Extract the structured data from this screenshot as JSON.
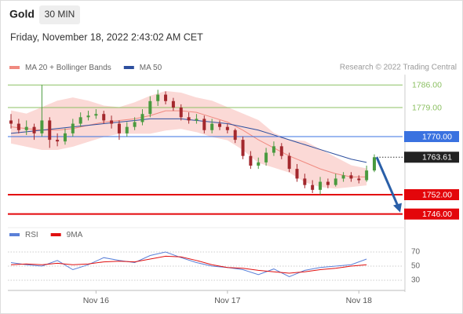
{
  "header": {
    "title": "Gold",
    "timeframe": "30 MIN",
    "datetime": "Friday, November 18, 2022 2:43:02 AM CET"
  },
  "chart_data": [
    {
      "type": "candlestick",
      "source": "Research © 2022 Trading Central",
      "categories": [
        null,
        null,
        null,
        null,
        null,
        null,
        null,
        null,
        null,
        null,
        null,
        "Nov 16",
        null,
        null,
        null,
        null,
        null,
        null,
        null,
        null,
        null,
        null,
        null,
        null,
        null,
        null,
        null,
        null,
        "Nov 17",
        null,
        null,
        null,
        null,
        null,
        null,
        null,
        null,
        null,
        null,
        null,
        null,
        null,
        null,
        null,
        null,
        "Nov 18",
        null,
        null
      ],
      "open": [
        1775,
        1774,
        1772,
        1773,
        1771,
        1775,
        1769,
        1768.5,
        1771,
        1774,
        1776,
        1776.5,
        1777,
        1775,
        1774,
        1771,
        1773,
        1774.5,
        1777,
        1781,
        1783,
        1781,
        1779,
        1776,
        1775,
        1775.5,
        1772,
        1774,
        1773,
        1772,
        1769,
        1764,
        1761,
        1762,
        1765,
        1767,
        1764,
        1760,
        1757,
        1755,
        1753.5,
        1756,
        1755,
        1757,
        1758,
        1757,
        1756.5,
        1759.5
      ],
      "high": [
        1777,
        1775.5,
        1775,
        1774,
        1786,
        1776,
        1771,
        1772.5,
        1775.5,
        1777.5,
        1778,
        1778.5,
        1778,
        1776.5,
        1775,
        1774.5,
        1776,
        1778.5,
        1782.5,
        1784.5,
        1784,
        1782,
        1780,
        1777.5,
        1777,
        1776.5,
        1775.5,
        1775,
        1774,
        1772.5,
        1770,
        1765.5,
        1763.5,
        1766.5,
        1768.5,
        1768,
        1765,
        1761.5,
        1758.5,
        1756.5,
        1757.5,
        1757,
        1758.5,
        1759,
        1759,
        1758,
        1761,
        1764.5
      ],
      "low": [
        1772.5,
        1771,
        1770.5,
        1769,
        1770,
        1766.5,
        1767,
        1767.5,
        1770,
        1773,
        1775,
        1775.5,
        1774,
        1772.5,
        1769,
        1770,
        1772,
        1773.5,
        1776,
        1779.5,
        1780,
        1778,
        1775,
        1774,
        1774,
        1771,
        1771,
        1772,
        1771,
        1768,
        1763,
        1760,
        1760,
        1761,
        1764,
        1763,
        1759,
        1756,
        1754,
        1752.5,
        1752,
        1754,
        1754.5,
        1756,
        1756,
        1755.5,
        1756,
        1759
      ],
      "close": [
        1774,
        1772,
        1773,
        1771,
        1775,
        1769,
        1768.5,
        1771,
        1774,
        1776,
        1776.5,
        1777,
        1775,
        1774,
        1771,
        1773,
        1774.5,
        1777,
        1781,
        1783,
        1781,
        1779,
        1776,
        1775,
        1775.5,
        1772,
        1774,
        1773,
        1772,
        1769,
        1764,
        1761,
        1762,
        1765,
        1767,
        1764,
        1760,
        1757,
        1755,
        1753.5,
        1756,
        1755,
        1757,
        1758,
        1757,
        1756.5,
        1759.5,
        1763.61
      ],
      "up_color": "#4a9a3f",
      "down_color": "#a3282d",
      "ylim": [
        1743,
        1788
      ],
      "last_price": 1763.61,
      "levels": [
        {
          "value": 1786,
          "label": "1786.00",
          "color": "#8cc063",
          "box": false
        },
        {
          "value": 1779,
          "label": "1779.00",
          "color": "#8cc063",
          "box": false
        },
        {
          "value": 1770,
          "label": "1770.00",
          "color": "#3a72e0",
          "box": true
        },
        {
          "value": 1752,
          "label": "1752.00",
          "color": "#e3060b",
          "box": true
        },
        {
          "value": 1746,
          "label": "1746.00",
          "color": "#e3060b",
          "box": true
        }
      ],
      "overlays": {
        "x": [
          0,
          2,
          4,
          6,
          8,
          10,
          12,
          14,
          16,
          18,
          20,
          22,
          24,
          26,
          28,
          30,
          32,
          34,
          36,
          38,
          40,
          42,
          44,
          46
        ],
        "series": [
          {
            "name": "MA 20 + Bollinger Bands",
            "color": "#f08a80",
            "band_color": "#fbd9d6",
            "values": [
              1773,
              1772.5,
              1772,
              1772,
              1772.5,
              1773.5,
              1774.5,
              1775,
              1775.5,
              1776.5,
              1778,
              1778,
              1777.5,
              1776,
              1774.5,
              1772,
              1769,
              1766.5,
              1764,
              1762,
              1760,
              1758.5,
              1757.5,
              1757.5
            ],
            "upper": [
              1778,
              1777,
              1779,
              1781,
              1782,
              1781,
              1779.5,
              1779,
              1780.5,
              1782.5,
              1784,
              1783.5,
              1782,
              1781,
              1779,
              1777,
              1775,
              1771,
              1769,
              1768.5,
              1766,
              1763.5,
              1761,
              1760
            ],
            "lower": [
              1768,
              1767,
              1766,
              1766,
              1767,
              1768.5,
              1770,
              1771,
              1771,
              1771,
              1772,
              1772.5,
              1771.5,
              1770,
              1769,
              1766,
              1762,
              1760.5,
              1759,
              1756,
              1754.5,
              1754,
              1754.5,
              1755
            ]
          },
          {
            "name": "MA 50",
            "color": "#2d4f9e",
            "values": [
              1771,
              1771.5,
              1772,
              1772.5,
              1773,
              1773.5,
              1774,
              1774.5,
              1775,
              1775.5,
              1775.5,
              1775.5,
              1775,
              1774.5,
              1774,
              1773,
              1772,
              1770.5,
              1769,
              1767.5,
              1766,
              1764.5,
              1763,
              1762
            ]
          }
        ]
      }
    },
    {
      "type": "line",
      "x": [
        0,
        2,
        4,
        6,
        8,
        10,
        12,
        14,
        16,
        18,
        20,
        22,
        24,
        26,
        28,
        30,
        32,
        34,
        36,
        38,
        40,
        42,
        44,
        46
      ],
      "xlim": [
        0,
        47
      ],
      "ylim": [
        20,
        80
      ],
      "yticks": [
        30,
        50,
        70
      ],
      "series": [
        {
          "name": "RSI",
          "color": "#5b80d8",
          "values": [
            55,
            52,
            50,
            58,
            45,
            52,
            62,
            58,
            55,
            65,
            70,
            62,
            55,
            50,
            48,
            45,
            38,
            46,
            35,
            44,
            48,
            50,
            52,
            60
          ]
        },
        {
          "name": "9MA",
          "color": "#e01010",
          "values": [
            52,
            53,
            52,
            54,
            52,
            53,
            56,
            57,
            56,
            60,
            64,
            63,
            58,
            52,
            48,
            47,
            44,
            42,
            40,
            42,
            45,
            47,
            50,
            52
          ]
        }
      ]
    }
  ]
}
